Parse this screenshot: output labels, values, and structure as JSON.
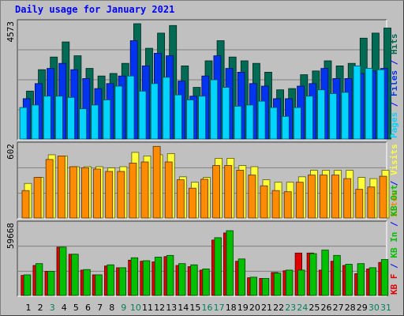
{
  "title": "Daily usage for January 2021",
  "colors": {
    "background": "#c0c0c0",
    "title": "#0000ff",
    "hits": "#006b54",
    "files": "#0034f0",
    "pages": "#00d4ff",
    "visits": "#ffff3a",
    "sites": "#ff8c00",
    "kb_in": "#00c000",
    "kb_out": "#e00000",
    "gridline": "#808080",
    "day_weekday": "#000000",
    "day_weekend": "#00805c"
  },
  "chart_data": [
    {
      "type": "bar",
      "panel": "hits-files-pages",
      "categories": [
        "1",
        "2",
        "3",
        "4",
        "5",
        "6",
        "7",
        "8",
        "9",
        "10",
        "11",
        "12",
        "13",
        "14",
        "15",
        "16",
        "17",
        "18",
        "19",
        "20",
        "21",
        "22",
        "23",
        "24",
        "25",
        "26",
        "27",
        "28",
        "29",
        "30",
        "31"
      ],
      "ymax_label": "4573",
      "ylim": [
        0,
        4573
      ],
      "series": [
        {
          "name": "Hits",
          "color_key": "hits",
          "values": [
            1900,
            2750,
            3250,
            3850,
            3300,
            2800,
            2500,
            2600,
            3000,
            4573,
            3600,
            4200,
            4500,
            2900,
            2050,
            3100,
            3900,
            3250,
            3100,
            3000,
            2650,
            1950,
            2000,
            2550,
            2700,
            3100,
            2900,
            3000,
            4000,
            4200,
            4400
          ]
        },
        {
          "name": "Files",
          "color_key": "files",
          "values": [
            1600,
            2200,
            2800,
            3000,
            2750,
            2400,
            2000,
            2200,
            2500,
            3900,
            2900,
            3400,
            3300,
            2300,
            1700,
            2500,
            3300,
            2800,
            2650,
            2200,
            2100,
            1600,
            1600,
            2100,
            2200,
            2800,
            2400,
            2400,
            2600,
            2700,
            2800
          ]
        },
        {
          "name": "Pages",
          "color_key": "pages",
          "values": [
            1250,
            1350,
            1700,
            1700,
            1650,
            1200,
            1350,
            1550,
            2100,
            2500,
            1900,
            2200,
            2450,
            1750,
            1550,
            1700,
            2350,
            2050,
            1300,
            1350,
            1500,
            1250,
            900,
            1250,
            1700,
            1950,
            1800,
            1850,
            2900,
            2800,
            2750
          ]
        }
      ]
    },
    {
      "type": "bar",
      "panel": "visits-sites",
      "categories": [
        "1",
        "2",
        "3",
        "4",
        "5",
        "6",
        "7",
        "8",
        "9",
        "10",
        "11",
        "12",
        "13",
        "14",
        "15",
        "16",
        "17",
        "18",
        "19",
        "20",
        "21",
        "22",
        "23",
        "24",
        "25",
        "26",
        "27",
        "28",
        "29",
        "30",
        "31"
      ],
      "ymax_label": "602",
      "ylim": [
        0,
        602
      ],
      "series": [
        {
          "name": "Visits",
          "color_key": "visits",
          "values": [
            290,
            340,
            530,
            520,
            430,
            430,
            430,
            420,
            430,
            550,
            520,
            530,
            540,
            345,
            300,
            340,
            500,
            500,
            440,
            430,
            320,
            300,
            300,
            345,
            400,
            400,
            400,
            400,
            340,
            330,
            400
          ]
        },
        {
          "name": "Sites",
          "color_key": "sites",
          "values": [
            230,
            340,
            490,
            520,
            430,
            420,
            410,
            390,
            390,
            460,
            470,
            600,
            470,
            320,
            250,
            325,
            440,
            440,
            400,
            360,
            270,
            230,
            220,
            300,
            360,
            360,
            360,
            330,
            240,
            260,
            350
          ]
        }
      ]
    },
    {
      "type": "bar",
      "panel": "kb-in-out",
      "categories": [
        "1",
        "2",
        "3",
        "4",
        "5",
        "6",
        "7",
        "8",
        "9",
        "10",
        "11",
        "12",
        "13",
        "14",
        "15",
        "16",
        "17",
        "18",
        "19",
        "20",
        "21",
        "22",
        "23",
        "24",
        "25",
        "26",
        "27",
        "28",
        "29",
        "30",
        "31"
      ],
      "ymax_label": "59668",
      "ylim": [
        0,
        59668
      ],
      "series": [
        {
          "name": "KB F",
          "color_key": "kb_out",
          "values": [
            17000,
            25500,
            20500,
            41000,
            35000,
            21500,
            17500,
            25000,
            23500,
            30000,
            29000,
            28500,
            33000,
            25500,
            24500,
            21500,
            47000,
            53000,
            29000,
            15000,
            14500,
            19500,
            21000,
            36000,
            36000,
            21500,
            29000,
            25500,
            18500,
            22500,
            28000
          ]
        },
        {
          "name": "KB In",
          "color_key": "kb_in",
          "values": [
            17500,
            27000,
            20500,
            41000,
            35000,
            22000,
            17500,
            26000,
            23500,
            32000,
            29500,
            32500,
            34000,
            27000,
            26000,
            22500,
            49000,
            55000,
            31000,
            15500,
            14500,
            19000,
            21500,
            21500,
            35500,
            38500,
            34000,
            26500,
            27000,
            23500,
            30500
          ]
        }
      ]
    }
  ],
  "right_legends": {
    "top": [
      {
        "text": "Pages",
        "color_key": "pages"
      },
      {
        "text": " / ",
        "color_key": "title"
      },
      {
        "text": "Files",
        "color_key": "files"
      },
      {
        "text": " / ",
        "color_key": "title"
      },
      {
        "text": "Hits",
        "color_key": "hits"
      }
    ],
    "middle": [
      {
        "text": "Sites",
        "color_key": "sites"
      },
      {
        "text": " / ",
        "color_key": "title"
      },
      {
        "text": "Visits",
        "color_key": "visits"
      }
    ],
    "bottom": [
      {
        "text": "KB F",
        "color_key": "kb_out"
      },
      {
        "text": " / ",
        "color_key": "title"
      },
      {
        "text": "KB In",
        "color_key": "kb_in"
      },
      {
        "text": " / ",
        "color_key": "title"
      },
      {
        "text": "KB Out",
        "color_key": "kb_in"
      }
    ]
  },
  "weekend_days": [
    3,
    9,
    10,
    16,
    17,
    23,
    24,
    30,
    31
  ]
}
